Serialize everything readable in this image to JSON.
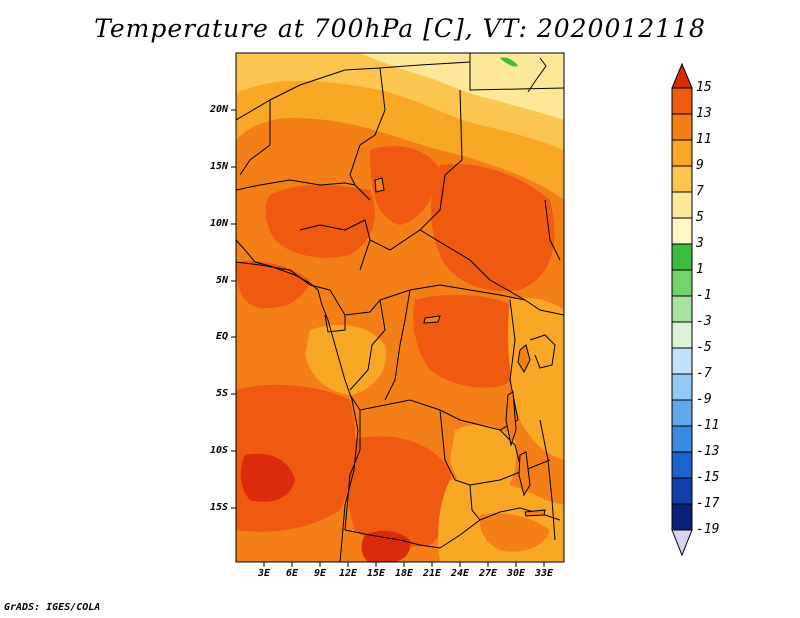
{
  "title": "Temperature at 700hPa [C], VT: 2020012118",
  "footer": "GrADS: IGES/COLA",
  "map": {
    "lat_labels": [
      "20N",
      "15N",
      "10N",
      "5N",
      "EQ",
      "5S",
      "10S",
      "15S"
    ],
    "lon_labels": [
      "3E",
      "6E",
      "9E",
      "12E",
      "15E",
      "18E",
      "21E",
      "24E",
      "27E",
      "30E",
      "33E"
    ]
  },
  "colorbar": {
    "labels": [
      "15",
      "13",
      "11",
      "9",
      "7",
      "5",
      "3",
      "1",
      "-1",
      "-3",
      "-5",
      "-7",
      "-9",
      "-11",
      "-13",
      "-15",
      "-17",
      "-19"
    ],
    "colors": {
      "above_13": "#dc2b0a",
      "11_13": "#f05a10",
      "9_11": "#f57f17",
      "7_9": "#f9a825",
      "5_7": "#fbc650",
      "3_5": "#fde89a",
      "1_3": "#3dbb3c",
      "-1_1": "#71d46a",
      "-3_-1": "#a6e39e",
      "-5_-3": "#dbf3d6",
      "-7_-5": "#c0e2fa",
      "-9_-7": "#93c9f5",
      "-11_-9": "#62a9eb",
      "-13_-11": "#3b8adf",
      "-15_-13": "#1c62cd",
      "-17_-15": "#103fa8",
      "-19_-17": "#0a1f76",
      "below_-19": "#d6d6f2"
    }
  }
}
